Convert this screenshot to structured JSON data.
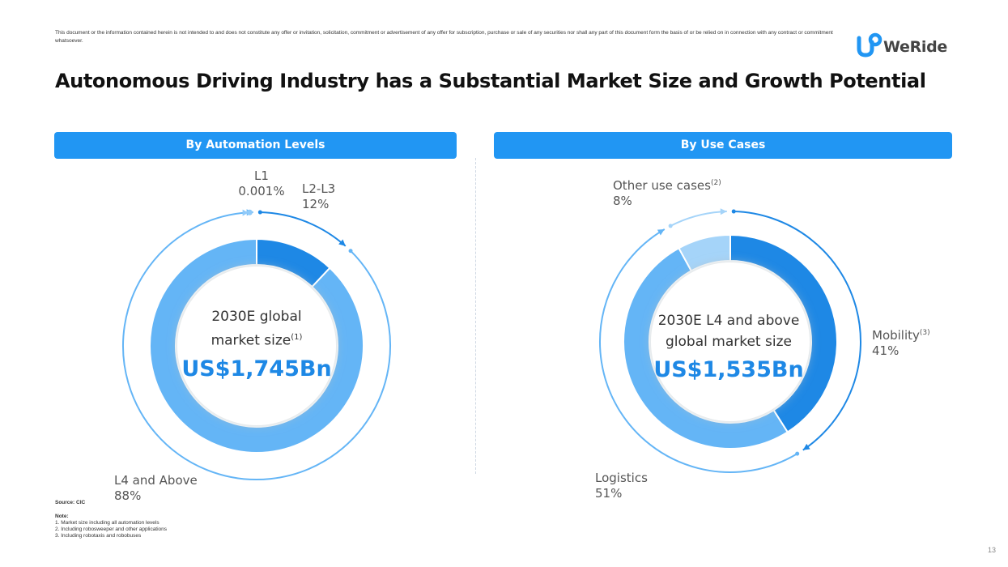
{
  "disclaimer": "This document or the information contained herein is not intended to and does not constitute any offer or invitation, solicitation, commitment or advertisement of any offer for subscription, purchase or sale of any securities nor shall any part of this document form the basis of or be relied on in connection with any contract or commitment whatsoever.",
  "logo": {
    "text": "WeRide"
  },
  "title": "Autonomous Driving Industry has a Substantial Market Size and Growth Potential",
  "colors": {
    "accent": "#2196F3",
    "dark_blue": "#1e88e5",
    "mid_blue": "#64b5f6",
    "light_blue": "#90caf9"
  },
  "chart_data": [
    {
      "type": "pie",
      "header": "By Automation Levels",
      "center": {
        "line1": "2030E global",
        "line2": "market size",
        "sup": "(1)",
        "value": "US$1,745Bn"
      },
      "total": 1745,
      "unit": "US$ Bn",
      "slices": [
        {
          "name": "L2-L3",
          "label": "L2-L3",
          "value_label": "12%",
          "value": 12,
          "color": "#1e88e5"
        },
        {
          "name": "L4 and Above",
          "label": "L4 and Above",
          "value_label": "88%",
          "value": 88,
          "color": "#64b5f6"
        },
        {
          "name": "L1",
          "label": "L1",
          "value_label": "0.001%",
          "value": 0.001,
          "color": "#90caf9"
        }
      ]
    },
    {
      "type": "pie",
      "header": "By Use Cases",
      "center": {
        "line1": "2030E L4 and above",
        "line2": "global market size",
        "value": "US$1,535Bn"
      },
      "total": 1535,
      "unit": "US$ Bn",
      "slices": [
        {
          "name": "Mobility",
          "label": "Mobility",
          "sup": "(3)",
          "value_label": "41%",
          "value": 41,
          "color": "#1e88e5"
        },
        {
          "name": "Logistics",
          "label": "Logistics",
          "value_label": "51%",
          "value": 51,
          "color": "#64b5f6"
        },
        {
          "name": "Other use cases",
          "label": "Other use cases",
          "sup": "(2)",
          "value_label": "8%",
          "value": 8,
          "color": "#a5d4f9"
        }
      ]
    }
  ],
  "source": "Source: CIC",
  "notes": {
    "heading": "Note:",
    "items": [
      "1. Market size including all automation levels",
      "2. Including robosweeper and other applications",
      "3. Including robotaxis and robobuses"
    ]
  },
  "page_number": "13"
}
